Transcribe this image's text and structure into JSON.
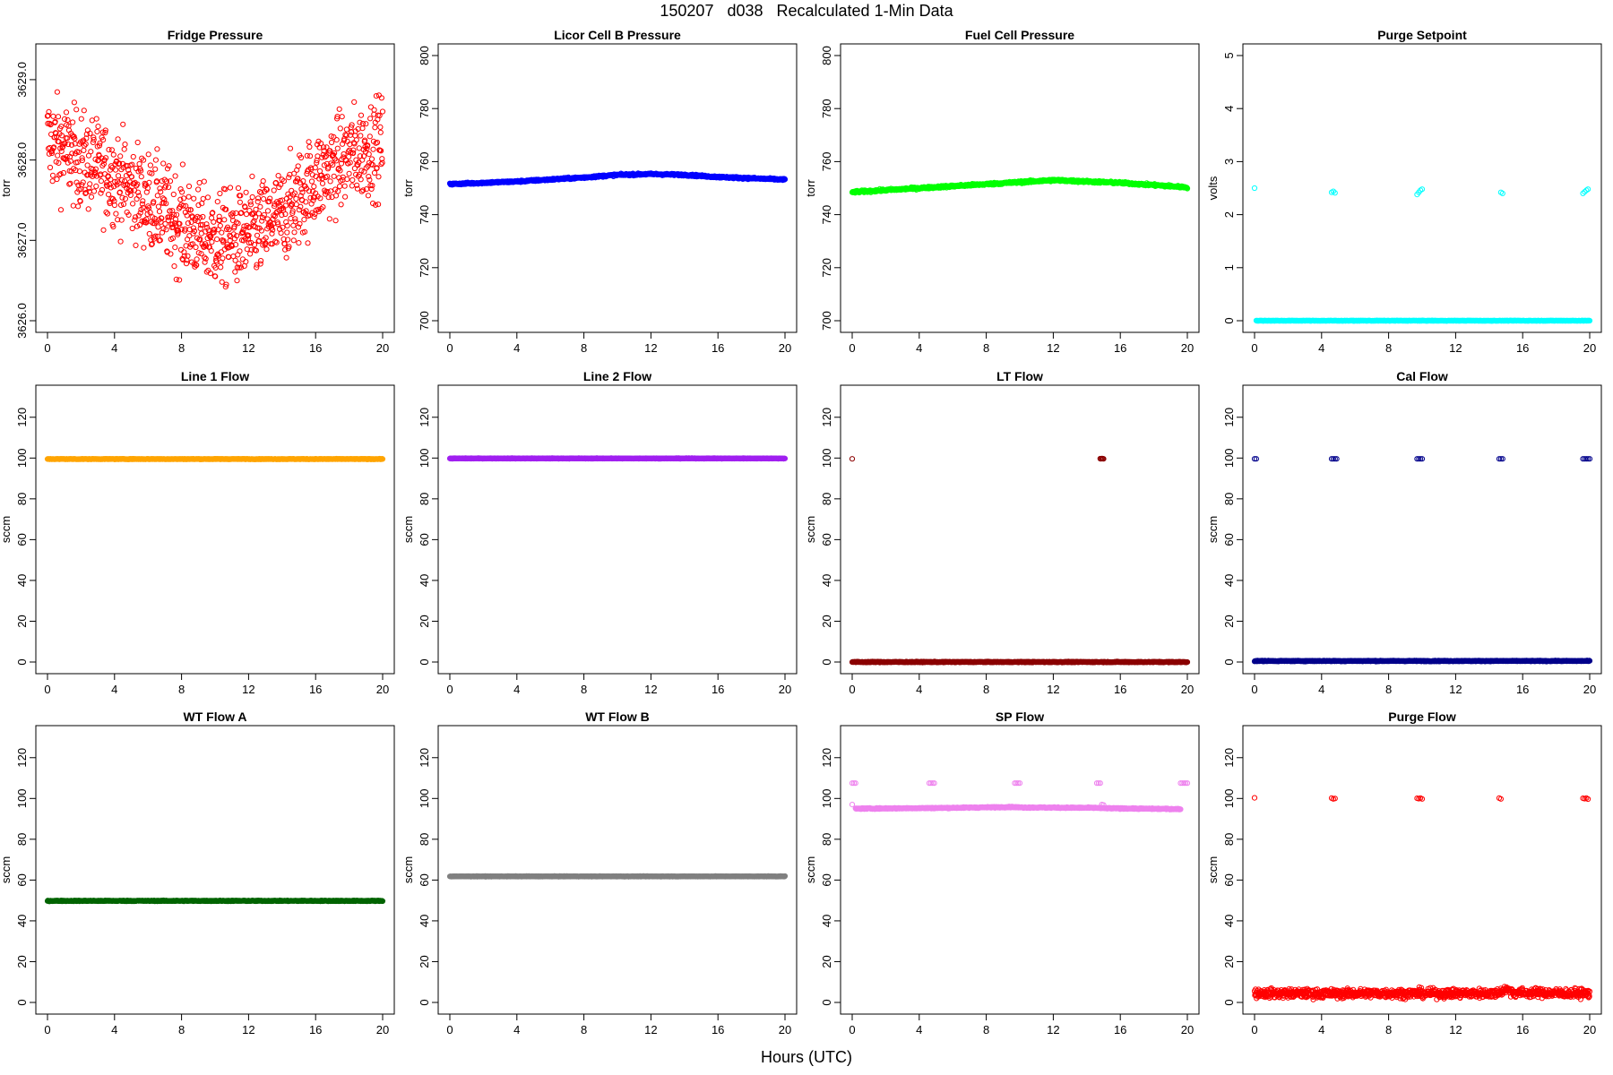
{
  "page": {
    "title": "150207   d038   Recalculated 1-Min Data",
    "xlabel": "Hours (UTC)"
  },
  "chart_data": [
    {
      "type": "scatter",
      "title": "Fridge Pressure",
      "ylabel": "torr",
      "color": "#ff0000",
      "xlim": [
        0,
        20
      ],
      "xticks": [
        0,
        4,
        8,
        12,
        16,
        20
      ],
      "ylim": [
        3626.0,
        3629.3
      ],
      "yticks": [
        3626.0,
        3627.0,
        3628.0,
        3629.0
      ],
      "ytick_labels": [
        "3626.0",
        "3627.0",
        "3628.0",
        "3629.0"
      ],
      "series": [
        {
          "curve": [
            [
              0,
              3628.25
            ],
            [
              2,
              3628.0
            ],
            [
              4,
              3627.8
            ],
            [
              6,
              3627.5
            ],
            [
              8,
              3627.2
            ],
            [
              10,
              3627.0
            ],
            [
              12,
              3627.05
            ],
            [
              14,
              3627.3
            ],
            [
              16,
              3627.75
            ],
            [
              18,
              3628.05
            ],
            [
              20,
              3628.2
            ]
          ],
          "noise": 0.42,
          "n": 1000
        }
      ]
    },
    {
      "type": "scatter",
      "title": "Licor Cell B Pressure",
      "ylabel": "torr",
      "color": "#0000ff",
      "xlim": [
        0,
        20
      ],
      "xticks": [
        0,
        4,
        8,
        12,
        16,
        20
      ],
      "ylim": [
        700,
        800
      ],
      "yticks": [
        700,
        720,
        740,
        760,
        780,
        800
      ],
      "series": [
        {
          "curve": [
            [
              0,
              751.5
            ],
            [
              4,
              752.5
            ],
            [
              8,
              754.0
            ],
            [
              10,
              755.0
            ],
            [
              12,
              755.3
            ],
            [
              14,
              755.0
            ],
            [
              16,
              754.2
            ],
            [
              20,
              753.2
            ]
          ],
          "noise": 0.25,
          "n": 900
        }
      ]
    },
    {
      "type": "scatter",
      "title": "Fuel Cell Pressure",
      "ylabel": "torr",
      "color": "#00ff00",
      "xlim": [
        0,
        20
      ],
      "xticks": [
        0,
        4,
        8,
        12,
        16,
        20
      ],
      "ylim": [
        700,
        800
      ],
      "yticks": [
        700,
        720,
        740,
        760,
        780,
        800
      ],
      "series": [
        {
          "curve": [
            [
              0,
              748.5
            ],
            [
              4,
              750.0
            ],
            [
              8,
              751.5
            ],
            [
              12,
              753.0
            ],
            [
              16,
              752.0
            ],
            [
              20,
              750.3
            ]
          ],
          "noise": 0.3,
          "n": 900
        }
      ]
    },
    {
      "type": "scatter",
      "title": "Purge Setpoint",
      "ylabel": "volts",
      "color": "#00ffff",
      "xlim": [
        0,
        20
      ],
      "xticks": [
        0,
        4,
        8,
        12,
        16,
        20
      ],
      "ylim": [
        0,
        5
      ],
      "yticks": [
        0,
        1,
        2,
        3,
        4,
        5
      ],
      "series": [
        {
          "curve": [
            [
              0.1,
              0.0
            ],
            [
              20,
              0.0
            ]
          ],
          "noise": 0.003,
          "n": 900
        },
        {
          "points": [
            [
              0.0,
              2.5
            ],
            [
              4.6,
              2.42
            ],
            [
              4.7,
              2.44
            ],
            [
              4.8,
              2.41
            ],
            [
              9.7,
              2.38
            ],
            [
              9.8,
              2.42
            ],
            [
              9.9,
              2.46
            ],
            [
              10.0,
              2.48
            ],
            [
              14.7,
              2.42
            ],
            [
              14.8,
              2.4
            ],
            [
              19.6,
              2.4
            ],
            [
              19.7,
              2.43
            ],
            [
              19.8,
              2.46
            ],
            [
              19.9,
              2.48
            ]
          ]
        }
      ]
    },
    {
      "type": "scatter",
      "title": "Line 1 Flow",
      "ylabel": "sccm",
      "color": "#ffa500",
      "xlim": [
        0,
        20
      ],
      "xticks": [
        0,
        4,
        8,
        12,
        16,
        20
      ],
      "ylim": [
        0,
        130
      ],
      "yticks": [
        0,
        20,
        40,
        60,
        80,
        100,
        120
      ],
      "series": [
        {
          "curve": [
            [
              0,
              99.5
            ],
            [
              20,
              99.5
            ]
          ],
          "noise": 0.1,
          "n": 900
        }
      ]
    },
    {
      "type": "scatter",
      "title": "Line 2 Flow",
      "ylabel": "sccm",
      "color": "#a020f0",
      "xlim": [
        0,
        20
      ],
      "xticks": [
        0,
        4,
        8,
        12,
        16,
        20
      ],
      "ylim": [
        0,
        130
      ],
      "yticks": [
        0,
        20,
        40,
        60,
        80,
        100,
        120
      ],
      "series": [
        {
          "curve": [
            [
              0,
              99.8
            ],
            [
              20,
              99.8
            ]
          ],
          "noise": 0.1,
          "n": 900
        }
      ]
    },
    {
      "type": "scatter",
      "title": "LT Flow",
      "ylabel": "sccm",
      "color": "#8b0000",
      "xlim": [
        0,
        20
      ],
      "xticks": [
        0,
        4,
        8,
        12,
        16,
        20
      ],
      "ylim": [
        0,
        130
      ],
      "yticks": [
        0,
        20,
        40,
        60,
        80,
        100,
        120
      ],
      "series": [
        {
          "curve": [
            [
              0,
              0.0
            ],
            [
              20,
              0.0
            ]
          ],
          "noise": 0.15,
          "n": 900
        },
        {
          "points": [
            [
              0.0,
              99.6
            ],
            [
              14.8,
              99.7
            ],
            [
              14.85,
              99.6
            ],
            [
              14.9,
              99.8
            ],
            [
              14.95,
              99.7
            ],
            [
              15.0,
              99.6
            ]
          ]
        }
      ]
    },
    {
      "type": "scatter",
      "title": "Cal Flow",
      "ylabel": "sccm",
      "color": "#00008b",
      "xlim": [
        0,
        20
      ],
      "xticks": [
        0,
        4,
        8,
        12,
        16,
        20
      ],
      "ylim": [
        0,
        130
      ],
      "yticks": [
        0,
        20,
        40,
        60,
        80,
        100,
        120
      ],
      "series": [
        {
          "curve": [
            [
              0,
              0.5
            ],
            [
              20,
              0.5
            ]
          ],
          "noise": 0.15,
          "n": 900
        },
        {
          "points": [
            [
              0.0,
              99.6
            ],
            [
              0.1,
              99.6
            ],
            [
              4.6,
              99.6
            ],
            [
              4.7,
              99.6
            ],
            [
              4.8,
              99.6
            ],
            [
              4.9,
              99.6
            ],
            [
              9.7,
              99.6
            ],
            [
              9.8,
              99.6
            ],
            [
              9.9,
              99.6
            ],
            [
              10.0,
              99.6
            ],
            [
              14.6,
              99.6
            ],
            [
              14.7,
              99.6
            ],
            [
              14.8,
              99.6
            ],
            [
              19.6,
              99.6
            ],
            [
              19.7,
              99.6
            ],
            [
              19.8,
              99.6
            ],
            [
              19.9,
              99.6
            ],
            [
              20.0,
              99.6
            ]
          ]
        }
      ]
    },
    {
      "type": "scatter",
      "title": "WT Flow A",
      "ylabel": "sccm",
      "color": "#006400",
      "xlim": [
        0,
        20
      ],
      "xticks": [
        0,
        4,
        8,
        12,
        16,
        20
      ],
      "ylim": [
        0,
        130
      ],
      "yticks": [
        0,
        20,
        40,
        60,
        80,
        100,
        120
      ],
      "series": [
        {
          "curve": [
            [
              0,
              49.8
            ],
            [
              20,
              49.8
            ]
          ],
          "noise": 0.15,
          "n": 900
        }
      ]
    },
    {
      "type": "scatter",
      "title": "WT Flow B",
      "ylabel": "sccm",
      "color": "#808080",
      "xlim": [
        0,
        20
      ],
      "xticks": [
        0,
        4,
        8,
        12,
        16,
        20
      ],
      "ylim": [
        0,
        130
      ],
      "yticks": [
        0,
        20,
        40,
        60,
        80,
        100,
        120
      ],
      "series": [
        {
          "curve": [
            [
              0,
              61.8
            ],
            [
              20,
              61.8
            ]
          ],
          "noise": 0.1,
          "n": 900
        }
      ]
    },
    {
      "type": "scatter",
      "title": "SP Flow",
      "ylabel": "sccm",
      "color": "#ee82ee",
      "xlim": [
        0,
        20
      ],
      "xticks": [
        0,
        4,
        8,
        12,
        16,
        20
      ],
      "ylim": [
        0,
        130
      ],
      "yticks": [
        0,
        20,
        40,
        60,
        80,
        100,
        120
      ],
      "series": [
        {
          "curve": [
            [
              0.2,
              95.0
            ],
            [
              4.7,
              95.3
            ],
            [
              4.9,
              95.3
            ],
            [
              9.6,
              95.8
            ],
            [
              10.0,
              95.6
            ],
            [
              14.6,
              95.4
            ],
            [
              15.0,
              95.2
            ],
            [
              19.6,
              94.8
            ]
          ],
          "noise": 0.2,
          "n": 850
        },
        {
          "points": [
            [
              0.0,
              107.5
            ],
            [
              0.1,
              107.5
            ],
            [
              0.2,
              107.5
            ],
            [
              4.6,
              107.5
            ],
            [
              4.7,
              107.5
            ],
            [
              4.8,
              107.5
            ],
            [
              4.9,
              107.5
            ],
            [
              9.7,
              107.5
            ],
            [
              9.8,
              107.5
            ],
            [
              9.9,
              107.5
            ],
            [
              10.0,
              107.5
            ],
            [
              14.6,
              107.5
            ],
            [
              14.7,
              107.5
            ],
            [
              14.8,
              107.5
            ],
            [
              19.6,
              107.5
            ],
            [
              19.7,
              107.5
            ],
            [
              19.8,
              107.5
            ],
            [
              19.9,
              107.5
            ],
            [
              20.0,
              107.5
            ],
            [
              0.0,
              97.0
            ],
            [
              14.9,
              97.0
            ],
            [
              15.0,
              96.8
            ]
          ]
        }
      ]
    },
    {
      "type": "scatter",
      "title": "Purge Flow",
      "ylabel": "sccm",
      "color": "#ff0000",
      "xlim": [
        0,
        20
      ],
      "xticks": [
        0,
        4,
        8,
        12,
        16,
        20
      ],
      "ylim": [
        0,
        130
      ],
      "yticks": [
        0,
        20,
        40,
        60,
        80,
        100,
        120
      ],
      "series": [
        {
          "curve": [
            [
              0,
              4.5
            ],
            [
              4,
              4.3
            ],
            [
              8,
              4.5
            ],
            [
              12,
              4.4
            ],
            [
              14.5,
              4.5
            ],
            [
              15,
              6.5
            ],
            [
              15.5,
              4.8
            ],
            [
              20,
              4.4
            ]
          ],
          "noise": 1.6,
          "n": 1000
        },
        {
          "points": [
            [
              0.0,
              100.3
            ],
            [
              4.6,
              100.2
            ],
            [
              4.7,
              99.8
            ],
            [
              4.8,
              100.0
            ],
            [
              9.7,
              100.1
            ],
            [
              9.8,
              99.9
            ],
            [
              9.9,
              100.2
            ],
            [
              10.0,
              99.8
            ],
            [
              14.6,
              100.2
            ],
            [
              14.7,
              99.8
            ],
            [
              19.6,
              100.1
            ],
            [
              19.7,
              99.9
            ],
            [
              19.8,
              100.2
            ],
            [
              19.9,
              99.7
            ]
          ]
        }
      ]
    }
  ]
}
